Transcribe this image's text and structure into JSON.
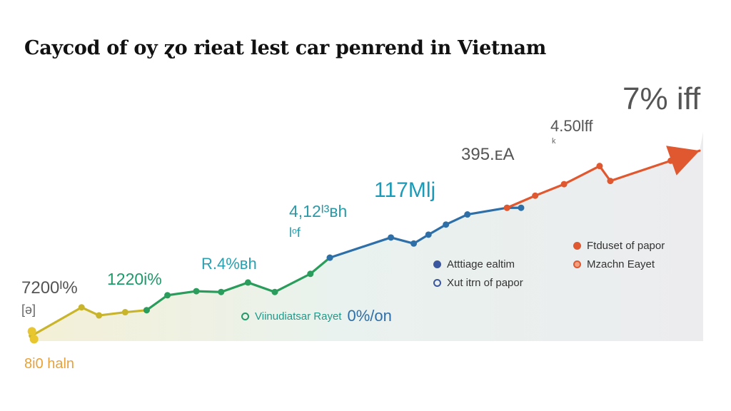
{
  "chart_data": {
    "type": "line",
    "title": "Caycod of oy ɀo rieat lest car penrend in Vietnam",
    "xlabel": "",
    "ylabel": "",
    "grid": false,
    "xlim": [
      0,
      100
    ],
    "ylim": [
      0,
      100
    ],
    "series": [
      {
        "color": "#c9b52c",
        "points": [
          [
            0.5,
            2.7
          ],
          [
            7.9,
            16.7
          ],
          [
            10.5,
            12.7
          ],
          [
            14.4,
            14.3
          ],
          [
            17.6,
            15.3
          ]
        ]
      },
      {
        "color": "#2a9d5c",
        "points": [
          [
            17.6,
            15.3
          ],
          [
            20.7,
            22.7
          ],
          [
            25,
            24.7
          ],
          [
            28.7,
            24.3
          ],
          [
            32.7,
            29
          ],
          [
            36.7,
            24.3
          ],
          [
            42,
            33.3
          ],
          [
            44.9,
            41.3
          ]
        ]
      },
      {
        "color": "#2f6fa8",
        "points": [
          [
            44.9,
            41.3
          ],
          [
            54,
            51.3
          ],
          [
            57.4,
            48.3
          ],
          [
            59.6,
            52.7
          ],
          [
            62.2,
            57.7
          ],
          [
            65.4,
            62.7
          ],
          [
            71.3,
            66
          ],
          [
            73.4,
            66
          ]
        ]
      },
      {
        "color": "#e0582f",
        "points": [
          [
            71.3,
            66
          ],
          [
            75.5,
            72
          ],
          [
            79.8,
            77.7
          ],
          [
            85.1,
            86.7
          ],
          [
            86.7,
            79.3
          ],
          [
            95.7,
            89.3
          ],
          [
            100,
            94.3
          ]
        ]
      }
    ],
    "area_fill": true,
    "end_arrow": true,
    "annotations": [
      {
        "text": "7200ᴵ%",
        "sub": "[ə]",
        "color": "#555555"
      },
      {
        "text": "1220i%",
        "color": "#1f9a6a"
      },
      {
        "text": "R.4%ʙh",
        "color": "#2aa0b0"
      },
      {
        "text": "4,12ᴵ³ʙh",
        "sub": "lᵒf",
        "color": "#2a9aa8"
      },
      {
        "text": "117Mlj",
        "color": "#1b9bb8"
      },
      {
        "text": "395.ᴇA",
        "color": "#555555"
      },
      {
        "text": "4.50lff",
        "sub": "ᵏ",
        "color": "#555555"
      },
      {
        "text": "7% iff",
        "color": "#555555"
      },
      {
        "text": "8i0 haln",
        "color": "#e8a23a"
      }
    ],
    "legend": [
      {
        "label": "Viinudiatsar Rayet",
        "suffix": "0%/on",
        "color": "#1f9a6a",
        "marker": "ring"
      },
      {
        "label": "Atttiage ealtim",
        "color": "#3a57a0",
        "marker": "dot"
      },
      {
        "label": "Xut itrn of papor",
        "color": "#3a57a0",
        "marker": "ring"
      },
      {
        "label": "Ftduset of papor",
        "color": "#e0582f",
        "marker": "dot"
      },
      {
        "label": "Mzachn Eayet",
        "color": "#e0582f",
        "marker": "ring-dot"
      }
    ]
  }
}
